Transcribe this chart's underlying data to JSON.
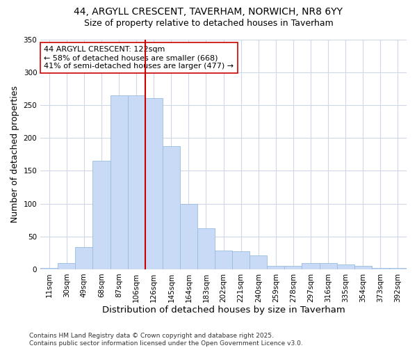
{
  "title1": "44, ARGYLL CRESCENT, TAVERHAM, NORWICH, NR8 6YY",
  "title2": "Size of property relative to detached houses in Taverham",
  "xlabel": "Distribution of detached houses by size in Taverham",
  "ylabel": "Number of detached properties",
  "annotation_title": "44 ARGYLL CRESCENT: 122sqm",
  "annotation_line1": "← 58% of detached houses are smaller (668)",
  "annotation_line2": "41% of semi-detached houses are larger (477) →",
  "footer1": "Contains HM Land Registry data © Crown copyright and database right 2025.",
  "footer2": "Contains public sector information licensed under the Open Government Licence v3.0.",
  "categories": [
    "11sqm",
    "30sqm",
    "49sqm",
    "68sqm",
    "87sqm",
    "106sqm",
    "126sqm",
    "145sqm",
    "164sqm",
    "183sqm",
    "202sqm",
    "221sqm",
    "240sqm",
    "259sqm",
    "278sqm",
    "297sqm",
    "316sqm",
    "335sqm",
    "354sqm",
    "373sqm",
    "392sqm"
  ],
  "values": [
    2,
    9,
    34,
    165,
    265,
    265,
    260,
    187,
    100,
    62,
    29,
    28,
    21,
    5,
    5,
    10,
    10,
    7,
    5,
    2,
    2
  ],
  "bar_color": "#c8daf5",
  "bar_edge_color": "#9abde0",
  "vline_x": 6.0,
  "vline_color": "#cc0000",
  "annotation_box_color": "#cc0000",
  "background_color": "#ffffff",
  "plot_bg_color": "#ffffff",
  "grid_color": "#d0d8e8",
  "ylim": [
    0,
    350
  ],
  "yticks": [
    0,
    50,
    100,
    150,
    200,
    250,
    300,
    350
  ],
  "title_fontsize": 10,
  "subtitle_fontsize": 9,
  "axis_label_fontsize": 9,
  "tick_fontsize": 7.5,
  "annotation_fontsize": 8,
  "footer_fontsize": 6.5
}
